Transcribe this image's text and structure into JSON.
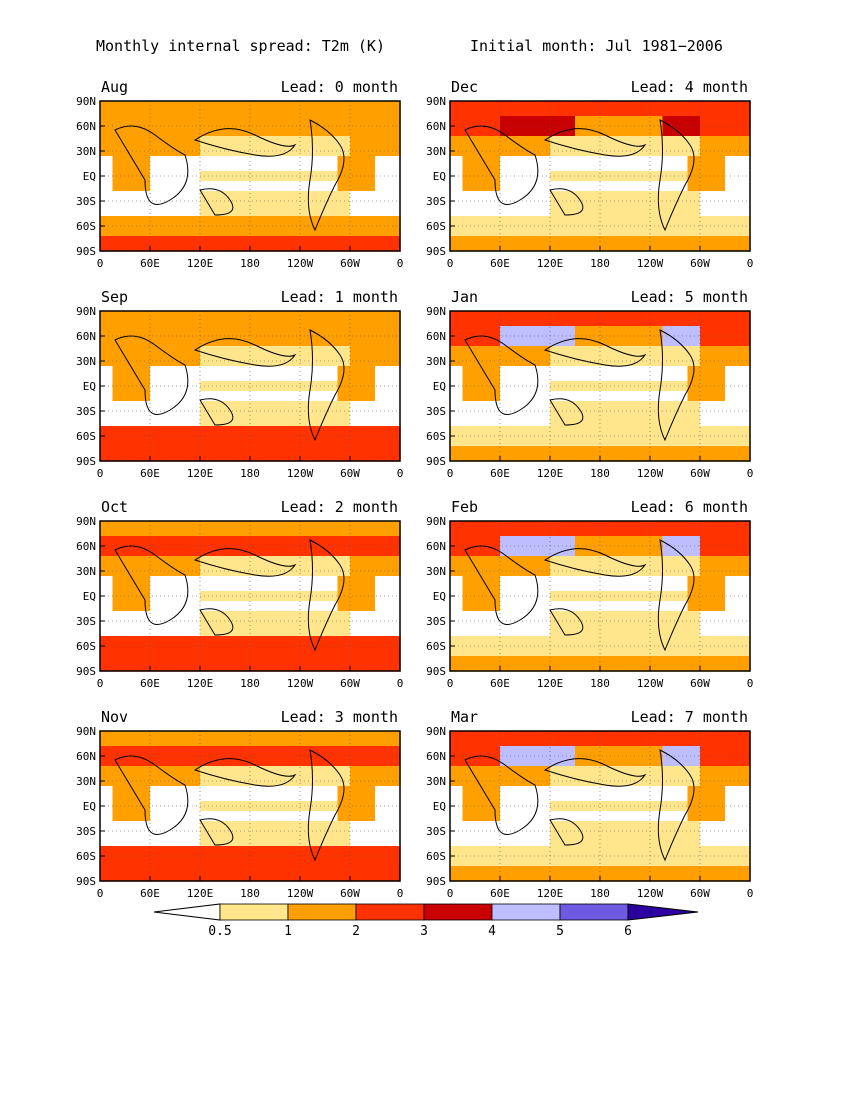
{
  "header": {
    "title": "Monthly internal spread: T2m (K)",
    "initial": "Initial month: Jul 1981−2006"
  },
  "panels": [
    {
      "month": "Aug",
      "lead": "Lead: 0 month"
    },
    {
      "month": "Dec",
      "lead": "Lead: 4 month"
    },
    {
      "month": "Sep",
      "lead": "Lead: 1 month"
    },
    {
      "month": "Jan",
      "lead": "Lead: 5 month"
    },
    {
      "month": "Oct",
      "lead": "Lead: 2 month"
    },
    {
      "month": "Feb",
      "lead": "Lead: 6 month"
    },
    {
      "month": "Nov",
      "lead": "Lead: 3 month"
    },
    {
      "month": "Mar",
      "lead": "Lead: 7 month"
    }
  ],
  "axes": {
    "lat_ticks": [
      "90N",
      "60N",
      "30N",
      "EQ",
      "30S",
      "60S",
      "90S"
    ],
    "lon_ticks": [
      "0",
      "60E",
      "120E",
      "180",
      "120W",
      "60W",
      "0"
    ]
  },
  "colorbar": {
    "labels": [
      "0.5",
      "1",
      "2",
      "3",
      "4",
      "5",
      "6"
    ],
    "colors": [
      "#ffffff",
      "#ffe68c",
      "#ffa000",
      "#ff3200",
      "#c80000",
      "#bebeff",
      "#6e5ae1",
      "#2d00a0"
    ]
  }
}
